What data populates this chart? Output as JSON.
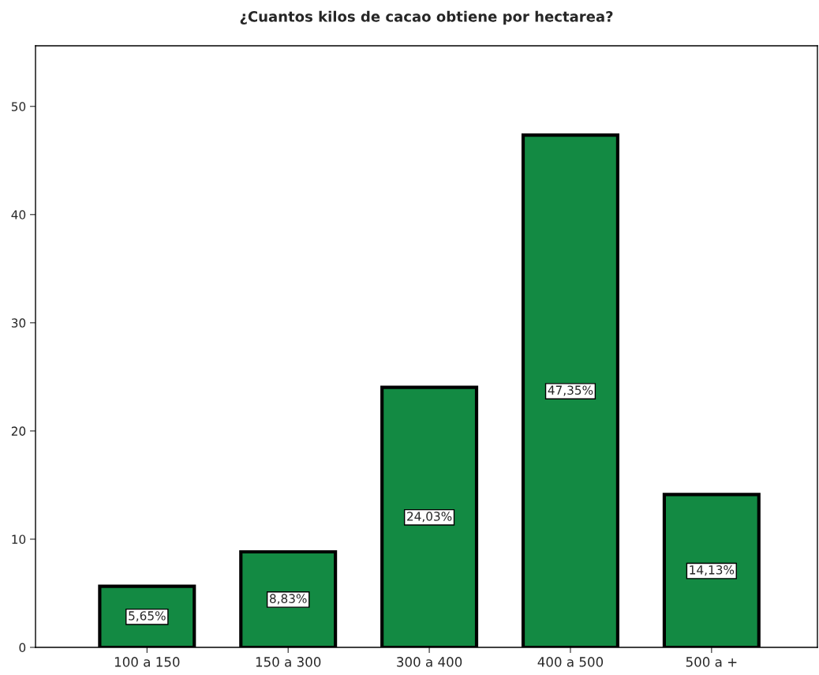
{
  "chart_data": {
    "type": "bar",
    "title": "¿Cuantos kilos de cacao obtiene por hectarea?",
    "categories": [
      "100 a 150",
      "150 a 300",
      "300 a 400",
      "400 a 500",
      "500 a +"
    ],
    "values": [
      5.65,
      8.83,
      24.03,
      47.35,
      14.13
    ],
    "value_labels": [
      "5,65%",
      "8,83%",
      "24,03%",
      "47,35%",
      "14,13%"
    ],
    "color": "#138a43",
    "ylim": [
      0,
      55.6
    ],
    "yticks": [
      0,
      10,
      20,
      30,
      40,
      50
    ],
    "grid": false
  }
}
